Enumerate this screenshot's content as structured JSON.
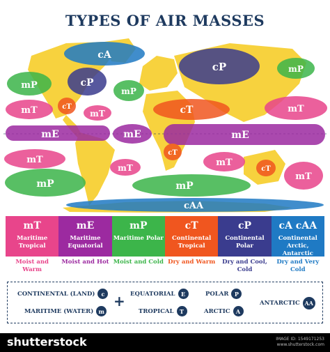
{
  "title": "TYPES OF AIR MASSES",
  "colors": {
    "mT": "#e8458b",
    "mE": "#9c2aa0",
    "mP": "#3cb54a",
    "cT": "#f0561f",
    "cP": "#3a3c8e",
    "cA": "#1f7ac4",
    "navy": "#1e3a5f",
    "land": "#f7d23e"
  },
  "map_labels": {
    "cA": "cA",
    "cP_na": "cP",
    "cP_asia": "cP",
    "mP_nw": "mP",
    "mP_na": "mP",
    "mP_ne": "mP",
    "mP_sw": "mP",
    "mP_sa": "mP",
    "mP_s": "mP",
    "mT_w": "mT",
    "mT_gulf": "mT",
    "mT_e": "mT",
    "mT_sa": "mT",
    "mT_sat": "mT",
    "mT_io": "mT",
    "mT_se": "mT",
    "mE_w": "mE",
    "mE_c": "mE",
    "mE_e": "mE",
    "cT_na": "cT",
    "cT_af": "cT",
    "cT_saf": "cT",
    "cT_au": "cT",
    "cAA": "cAA"
  },
  "legend": [
    {
      "code": "mT",
      "name": "Maritime Tropical",
      "desc": "Moist and Warm",
      "color": "#e8458b"
    },
    {
      "code": "mE",
      "name": "Maritime Equatorial",
      "desc": "Moist and Hot",
      "color": "#9c2aa0"
    },
    {
      "code": "mP",
      "name": "Maritime Polar",
      "desc": "Moist and Cold",
      "color": "#3cb54a"
    },
    {
      "code": "cT",
      "name": "Continental Tropical",
      "desc": "Dry and Warm",
      "color": "#f0561f"
    },
    {
      "code": "cP",
      "name": "Continental Polar",
      "desc": "Dry and Cool, Cold",
      "color": "#3a3c8e"
    },
    {
      "code": "cA  cAA",
      "name": "Continental Arctic, Antarctic",
      "desc": "Dry and Very Cold",
      "color": "#1f7ac4"
    }
  ],
  "key": {
    "continental": {
      "label": "CONTINENTAL (LAND)",
      "symbol": "c"
    },
    "maritime": {
      "label": "MARITIME (WATER)",
      "symbol": "m"
    },
    "plus": "+",
    "equatorial": {
      "label": "EQUATORIAL",
      "symbol": "E"
    },
    "tropical": {
      "label": "TROPICAL",
      "symbol": "T"
    },
    "polar": {
      "label": "POLAR",
      "symbol": "P"
    },
    "arctic": {
      "label": "ARCTIC",
      "symbol": "A"
    },
    "antarctic": {
      "label": "ANTARCTIC",
      "symbol": "AA"
    }
  },
  "footer": {
    "logo": "shutterstock",
    "image_id": "IMAGE ID: 1549171253",
    "site": "www.shutterstock.com"
  }
}
